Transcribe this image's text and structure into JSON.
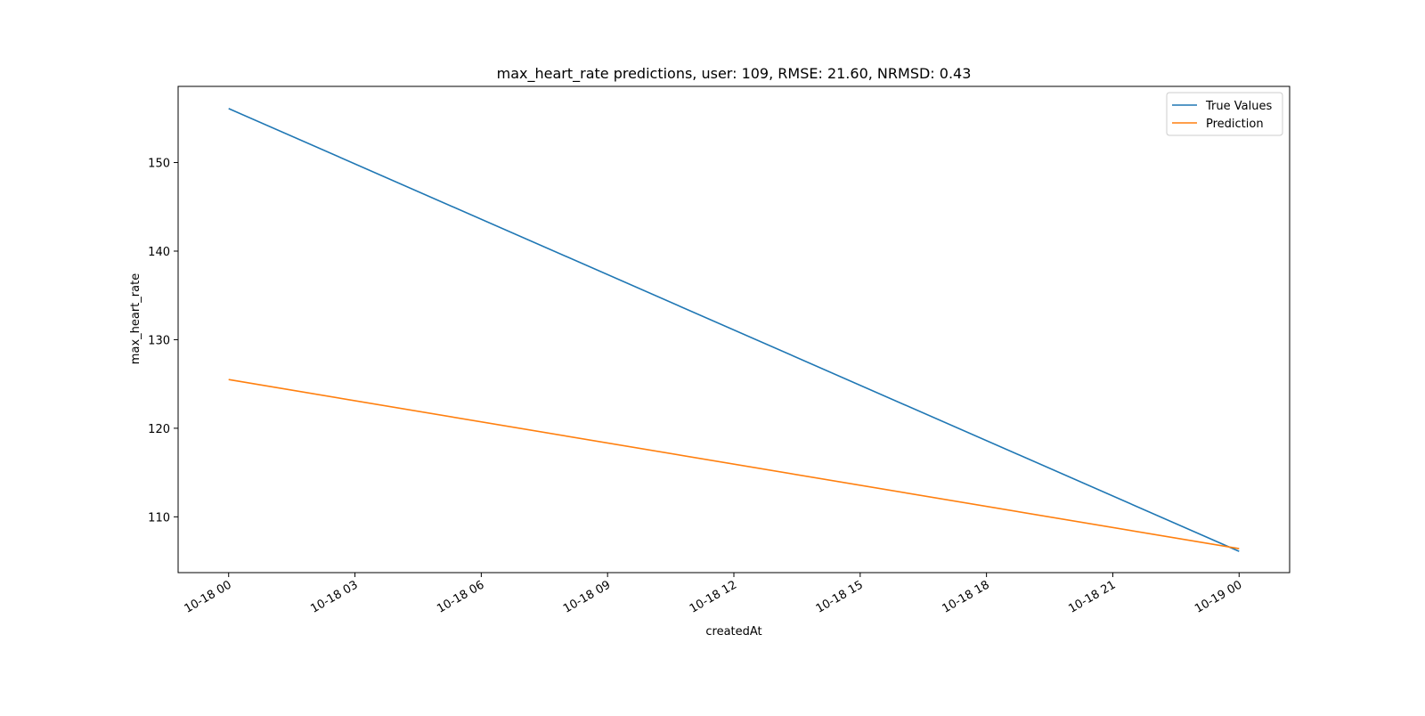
{
  "chart_data": {
    "type": "line",
    "title": "max_heart_rate predictions, user: 109, RMSE: 21.60, NRMSD: 0.43",
    "xlabel": "createdAt",
    "ylabel": "max_heart_rate",
    "x": [
      "10-18 00",
      "10-19 00"
    ],
    "x_ticks": [
      "10-18 00",
      "10-18 03",
      "10-18 06",
      "10-18 09",
      "10-18 12",
      "10-18 15",
      "10-18 18",
      "10-18 21",
      "10-19 00"
    ],
    "x_tick_hours": [
      0,
      3,
      6,
      9,
      12,
      15,
      18,
      21,
      24
    ],
    "x_hours": [
      0,
      24
    ],
    "xlim_hours": [
      -1.2,
      25.2
    ],
    "y_ticks": [
      110,
      120,
      130,
      140,
      150
    ],
    "ylim": [
      103.7,
      158.6
    ],
    "series": [
      {
        "name": "True Values",
        "values": [
          156.1,
          106.1
        ],
        "color": "#1f77b4"
      },
      {
        "name": "Prediction",
        "values": [
          125.5,
          106.4
        ],
        "color": "#ff7f0e"
      }
    ],
    "legend": "top-right",
    "grid": false
  }
}
